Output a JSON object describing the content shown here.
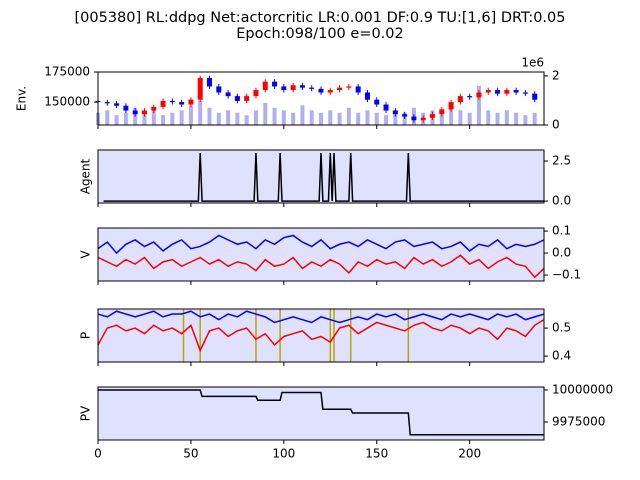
{
  "chart_data": [
    {
      "type": "candlestick",
      "title": [
        "[005380] RL:ddpg Net:actorcritic LR:0.001 DF:0.9 TU:[1,6] DRT:0.05",
        "Epoch:098/100 e=0.02"
      ],
      "ylabel": "Env.",
      "ytick_side": "left",
      "xlim": [
        0,
        240
      ],
      "xticks": [
        0,
        50,
        100,
        150,
        200
      ],
      "ylim": [
        131000,
        175000
      ],
      "yticks": [
        150000,
        175000
      ],
      "y2lim": [
        0,
        2.16
      ],
      "y2ticks": [
        0,
        2
      ],
      "y2_offset_label": "1e6",
      "up_color": "#ff0000",
      "down_color": "#0000ff",
      "volume_color": "#b0b0f0",
      "x": [
        0,
        5,
        10,
        15,
        20,
        25,
        30,
        35,
        40,
        45,
        50,
        55,
        60,
        65,
        70,
        75,
        80,
        85,
        90,
        95,
        100,
        105,
        110,
        115,
        120,
        125,
        130,
        135,
        140,
        145,
        150,
        155,
        160,
        165,
        170,
        175,
        180,
        185,
        190,
        195,
        200,
        205,
        210,
        215,
        220,
        225,
        230,
        235
      ],
      "open": [
        151000,
        150000,
        149000,
        147000,
        143000,
        140000,
        143000,
        146000,
        151000,
        150000,
        148000,
        152000,
        170000,
        163000,
        158000,
        155000,
        151000,
        155000,
        160000,
        167000,
        163000,
        160000,
        164000,
        162000,
        161000,
        158000,
        160000,
        162000,
        163000,
        158000,
        152000,
        148000,
        143000,
        140000,
        138000,
        135000,
        137000,
        140000,
        144000,
        150000,
        155000,
        154000,
        158000,
        160000,
        157000,
        160000,
        158000,
        157000
      ],
      "high": [
        153000,
        152000,
        151000,
        149000,
        145000,
        145000,
        148000,
        153000,
        153000,
        152000,
        154000,
        172000,
        172000,
        165000,
        160000,
        157000,
        157000,
        162000,
        169000,
        169000,
        165000,
        166000,
        166000,
        164000,
        163000,
        162000,
        164000,
        165000,
        165000,
        160000,
        154000,
        150000,
        145000,
        142000,
        140000,
        139000,
        142000,
        146000,
        152000,
        157000,
        157000,
        160000,
        162000,
        162000,
        162000,
        162000,
        160000,
        159000
      ],
      "low": [
        148000,
        147000,
        145000,
        141000,
        138000,
        138000,
        141000,
        144000,
        148000,
        146000,
        146000,
        150000,
        161000,
        156000,
        153000,
        149000,
        149000,
        153000,
        158000,
        161000,
        158000,
        158000,
        160000,
        159000,
        156000,
        156000,
        158000,
        160000,
        156000,
        150000,
        146000,
        141000,
        138000,
        136000,
        133000,
        133000,
        135000,
        138000,
        142000,
        148000,
        152000,
        152000,
        156000,
        155000,
        155000,
        156000,
        155000,
        150000
      ],
      "close": [
        150000,
        149000,
        147000,
        143000,
        140000,
        143000,
        146000,
        151000,
        150000,
        148000,
        152000,
        170000,
        163000,
        158000,
        155000,
        151000,
        155000,
        160000,
        167000,
        163000,
        160000,
        164000,
        162000,
        161000,
        158000,
        160000,
        162000,
        163000,
        158000,
        152000,
        148000,
        143000,
        140000,
        138000,
        135000,
        137000,
        140000,
        144000,
        150000,
        155000,
        154000,
        158000,
        160000,
        157000,
        160000,
        158000,
        157000,
        152000
      ],
      "volume": [
        0.5,
        0.6,
        0.4,
        0.5,
        0.7,
        0.5,
        0.6,
        0.4,
        0.5,
        0.6,
        0.8,
        1.0,
        0.7,
        0.5,
        0.6,
        0.5,
        0.4,
        0.6,
        0.9,
        0.7,
        0.6,
        0.5,
        0.8,
        0.6,
        0.5,
        0.6,
        0.5,
        0.7,
        0.5,
        0.6,
        0.5,
        0.4,
        0.6,
        0.5,
        0.7,
        0.5,
        0.6,
        0.5,
        0.8,
        0.6,
        0.5,
        1.6,
        0.6,
        0.5,
        0.6,
        0.5,
        0.4,
        0.5
      ]
    },
    {
      "type": "line",
      "ylabel": "Agent",
      "ytick_side": "right",
      "background": "#e0e0ff",
      "xlim": [
        0,
        240
      ],
      "xticks": [
        0,
        50,
        100,
        150,
        200
      ],
      "ylim": [
        -0.12,
        3.19
      ],
      "yticks": [
        {
          "value": 0,
          "label": "0.0"
        },
        {
          "value": 2.5,
          "label": "2.5"
        }
      ],
      "series": [
        {
          "color": "#000000",
          "x": [
            3,
            54,
            55,
            56,
            84,
            85,
            86,
            97,
            98,
            99,
            119,
            120,
            121,
            124,
            125,
            126,
            127,
            128,
            135,
            136,
            137,
            166,
            167,
            168,
            240
          ],
          "values": [
            0,
            0,
            3,
            0,
            0,
            3,
            0,
            0,
            3,
            0,
            0,
            3,
            0,
            0,
            3,
            0,
            3,
            0,
            0,
            3,
            0,
            0,
            3,
            0,
            0
          ]
        }
      ]
    },
    {
      "type": "line",
      "ylabel": "V",
      "ytick_side": "right",
      "background": "#e0e0ff",
      "xlim": [
        0,
        240
      ],
      "xticks": [
        0,
        50,
        100,
        150,
        200
      ],
      "ylim": [
        -0.127,
        0.114
      ],
      "yticks": [
        {
          "value": -0.1,
          "label": "−0.1"
        },
        {
          "value": 0,
          "label": "0.0"
        },
        {
          "value": 0.1,
          "label": "0.1"
        }
      ],
      "x": [
        0,
        5,
        10,
        15,
        20,
        25,
        30,
        35,
        40,
        45,
        50,
        55,
        60,
        65,
        70,
        75,
        80,
        85,
        90,
        95,
        100,
        105,
        110,
        115,
        120,
        125,
        130,
        135,
        140,
        145,
        150,
        155,
        160,
        165,
        170,
        175,
        180,
        185,
        190,
        195,
        200,
        205,
        210,
        215,
        220,
        225,
        230,
        235,
        240
      ],
      "series": [
        {
          "color": "#0000ff",
          "values": [
            0.02,
            0.05,
            0.0,
            0.04,
            0.06,
            0.03,
            0.05,
            0.01,
            0.04,
            0.06,
            0.02,
            0.03,
            0.05,
            0.08,
            0.06,
            0.04,
            0.05,
            0.02,
            0.06,
            0.04,
            0.07,
            0.08,
            0.05,
            0.03,
            0.06,
            0.02,
            0.04,
            0.05,
            0.03,
            0.06,
            0.04,
            0.02,
            0.05,
            0.06,
            0.03,
            0.04,
            0.05,
            0.02,
            0.03,
            0.05,
            0.01,
            0.04,
            0.03,
            0.06,
            0.02,
            0.04,
            0.03,
            0.04,
            0.06
          ]
        },
        {
          "color": "#ff0000",
          "values": [
            -0.02,
            -0.04,
            -0.06,
            -0.03,
            -0.05,
            -0.02,
            -0.07,
            -0.04,
            -0.03,
            -0.06,
            -0.04,
            -0.02,
            -0.05,
            -0.03,
            -0.06,
            -0.04,
            -0.05,
            -0.08,
            -0.03,
            -0.06,
            -0.05,
            -0.02,
            -0.07,
            -0.04,
            -0.06,
            -0.03,
            -0.05,
            -0.09,
            -0.04,
            -0.06,
            -0.03,
            -0.05,
            -0.04,
            -0.07,
            -0.02,
            -0.05,
            -0.03,
            -0.06,
            -0.04,
            -0.01,
            -0.05,
            -0.03,
            -0.07,
            -0.04,
            -0.02,
            -0.05,
            -0.06,
            -0.11,
            -0.07
          ]
        }
      ]
    },
    {
      "type": "line",
      "ylabel": "P",
      "ytick_side": "right",
      "background": "#e0e0ff",
      "xlim": [
        0,
        240
      ],
      "xticks": [
        0,
        50,
        100,
        150,
        200
      ],
      "ylim": [
        0.379,
        0.568
      ],
      "yticks": [
        {
          "value": 0.4,
          "label": "0.4"
        },
        {
          "value": 0.5,
          "label": "0.5"
        }
      ],
      "vlines": {
        "color": "#b5a800",
        "x": [
          46,
          55,
          85,
          98,
          125,
          127,
          136,
          167
        ]
      },
      "x": [
        0,
        5,
        10,
        15,
        20,
        25,
        30,
        35,
        40,
        45,
        50,
        55,
        60,
        65,
        70,
        75,
        80,
        85,
        90,
        95,
        100,
        105,
        110,
        115,
        120,
        125,
        130,
        135,
        140,
        145,
        150,
        155,
        160,
        165,
        170,
        175,
        180,
        185,
        190,
        195,
        200,
        205,
        210,
        215,
        220,
        225,
        230,
        235,
        240
      ],
      "series": [
        {
          "color": "#0000ff",
          "values": [
            0.55,
            0.54,
            0.56,
            0.55,
            0.54,
            0.55,
            0.56,
            0.54,
            0.55,
            0.55,
            0.56,
            0.54,
            0.55,
            0.53,
            0.55,
            0.54,
            0.56,
            0.55,
            0.54,
            0.52,
            0.53,
            0.54,
            0.53,
            0.52,
            0.54,
            0.53,
            0.52,
            0.53,
            0.54,
            0.53,
            0.55,
            0.54,
            0.55,
            0.53,
            0.54,
            0.55,
            0.54,
            0.53,
            0.55,
            0.54,
            0.55,
            0.54,
            0.53,
            0.55,
            0.54,
            0.55,
            0.53,
            0.54,
            0.55
          ]
        },
        {
          "color": "#ff0000",
          "values": [
            0.44,
            0.5,
            0.51,
            0.49,
            0.5,
            0.48,
            0.51,
            0.49,
            0.5,
            0.48,
            0.51,
            0.42,
            0.49,
            0.5,
            0.47,
            0.49,
            0.5,
            0.46,
            0.48,
            0.44,
            0.47,
            0.48,
            0.49,
            0.46,
            0.47,
            0.45,
            0.5,
            0.51,
            0.48,
            0.5,
            0.52,
            0.51,
            0.5,
            0.49,
            0.51,
            0.52,
            0.5,
            0.49,
            0.51,
            0.5,
            0.48,
            0.5,
            0.49,
            0.46,
            0.5,
            0.49,
            0.47,
            0.51,
            0.53
          ]
        }
      ]
    },
    {
      "type": "line",
      "ylabel": "PV",
      "ytick_side": "right",
      "background": "#e0e0ff",
      "xtick_labels": true,
      "xlim": [
        0,
        240
      ],
      "xticks": [
        0,
        50,
        100,
        150,
        200
      ],
      "ylim": [
        9960938,
        10002344
      ],
      "yticks": [
        9975000,
        10000000
      ],
      "series": [
        {
          "color": "#000000",
          "x": [
            0,
            55,
            56,
            85,
            86,
            98,
            99,
            120,
            121,
            136,
            137,
            167,
            168,
            240
          ],
          "values": [
            10000000,
            10000000,
            9995000,
            9995000,
            9992000,
            9992000,
            9998000,
            9998000,
            9985000,
            9985000,
            9982000,
            9982000,
            9965000,
            9965000
          ]
        }
      ]
    }
  ]
}
